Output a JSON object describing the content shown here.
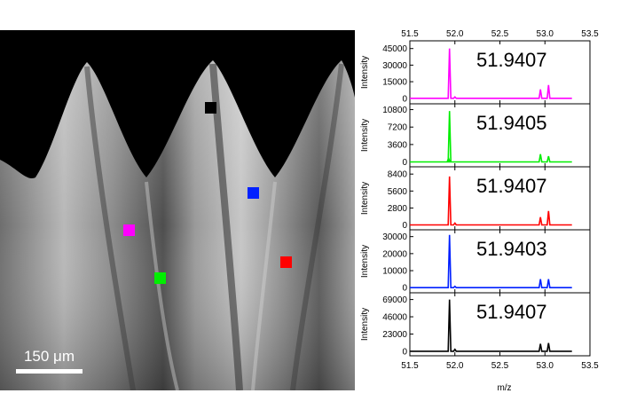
{
  "micrograph": {
    "scale_bar_label": "150 μm",
    "markers": [
      {
        "name": "marker-black",
        "color": "#000000",
        "panel": 4
      },
      {
        "name": "marker-blue",
        "color": "#0020ff",
        "panel": 3
      },
      {
        "name": "marker-magenta",
        "color": "#ff00ff",
        "panel": 0
      },
      {
        "name": "marker-green",
        "color": "#00ee00",
        "panel": 1
      },
      {
        "name": "marker-red",
        "color": "#ff0000",
        "panel": 2
      }
    ]
  },
  "chart_data": {
    "type": "line",
    "xlabel": "m/z",
    "ylabel": "Intensity",
    "xlim": [
      51.5,
      53.5
    ],
    "x_ticks": [
      "51.5",
      "52.0",
      "52.5",
      "53.0",
      "53.5"
    ],
    "top_x_ticks": [
      "51.5",
      "52.0",
      "52.5",
      "53.0",
      "53.5"
    ],
    "panels": [
      {
        "color": "#ff00ff",
        "peak_label": "51.9407",
        "ylim": [
          -5000,
          52000
        ],
        "yticks": [
          0,
          15000,
          30000,
          45000
        ],
        "ytick_labels": [
          "0",
          "15000",
          "30000",
          "45000"
        ],
        "peaks": [
          [
            51.9407,
            45000
          ],
          [
            52.0,
            1200
          ],
          [
            52.95,
            8000
          ],
          [
            53.04,
            12000
          ]
        ]
      },
      {
        "color": "#00ee00",
        "peak_label": "51.9405",
        "ylim": [
          -1000,
          12000
        ],
        "yticks": [
          0,
          3600,
          7200,
          10800
        ],
        "ytick_labels": [
          "0",
          "3600",
          "7200",
          "10800"
        ],
        "peaks": [
          [
            51.9405,
            10500
          ],
          [
            51.93,
            800
          ],
          [
            52.95,
            1600
          ],
          [
            53.04,
            1200
          ]
        ]
      },
      {
        "color": "#ff0000",
        "peak_label": "51.9407",
        "ylim": [
          -800,
          9600
        ],
        "yticks": [
          0,
          2800,
          5600,
          8400
        ],
        "ytick_labels": [
          "0",
          "2800",
          "5600",
          "8400"
        ],
        "peaks": [
          [
            51.9407,
            8000
          ],
          [
            52.0,
            300
          ],
          [
            52.95,
            1300
          ],
          [
            53.04,
            2300
          ]
        ]
      },
      {
        "color": "#0020ff",
        "peak_label": "51.9403",
        "ylim": [
          -3000,
          34000
        ],
        "yticks": [
          0,
          10000,
          20000,
          30000
        ],
        "ytick_labels": [
          "0",
          "10000",
          "20000",
          "30000"
        ],
        "peaks": [
          [
            51.9403,
            31000
          ],
          [
            52.0,
            800
          ],
          [
            52.95,
            5000
          ],
          [
            53.04,
            5000
          ]
        ]
      },
      {
        "color": "#000000",
        "peak_label": "51.9407",
        "ylim": [
          -6000,
          78000
        ],
        "yticks": [
          0,
          23000,
          46000,
          69000
        ],
        "ytick_labels": [
          "0",
          "23000",
          "46000",
          "69000"
        ],
        "peaks": [
          [
            51.9407,
            69000
          ],
          [
            52.0,
            2500
          ],
          [
            52.95,
            10000
          ],
          [
            53.04,
            11000
          ]
        ]
      }
    ]
  }
}
